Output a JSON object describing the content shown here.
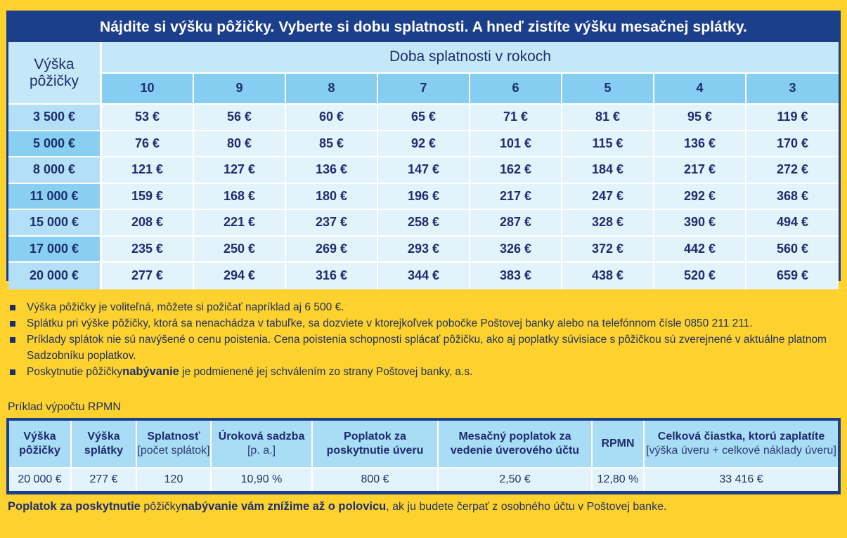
{
  "main_title": "Nájdite si výšku pôžičky. Vyberte si dobu splatnosti. A hneď zistíte výšku mesačnej splátky.",
  "loan_header_line1": "Výška",
  "loan_header_line2": "pôžičky",
  "term_header": "Doba splatnosti v rokoch",
  "terms": [
    "10",
    "9",
    "8",
    "7",
    "6",
    "5",
    "4",
    "3"
  ],
  "rows": [
    {
      "amount": "3 500 €",
      "values": [
        "53 €",
        "56 €",
        "60 €",
        "65 €",
        "71 €",
        "81 €",
        "95 €",
        "119 €"
      ]
    },
    {
      "amount": "5 000 €",
      "values": [
        "76 €",
        "80 €",
        "85 €",
        "92 €",
        "101 €",
        "115 €",
        "136 €",
        "170 €"
      ]
    },
    {
      "amount": "8 000 €",
      "values": [
        "121 €",
        "127 €",
        "136 €",
        "147 €",
        "162 €",
        "184 €",
        "217 €",
        "272 €"
      ]
    },
    {
      "amount": "11 000 €",
      "values": [
        "159 €",
        "168 €",
        "180 €",
        "196 €",
        "217 €",
        "247 €",
        "292 €",
        "368 €"
      ]
    },
    {
      "amount": "15 000 €",
      "values": [
        "208 €",
        "221 €",
        "237 €",
        "258 €",
        "287 €",
        "328 €",
        "390 €",
        "494 €"
      ]
    },
    {
      "amount": "17 000 €",
      "values": [
        "235 €",
        "250 €",
        "269 €",
        "293 €",
        "326 €",
        "372 €",
        "442 €",
        "560 €"
      ]
    },
    {
      "amount": "20 000 €",
      "values": [
        "277 €",
        "294 €",
        "316 €",
        "344 €",
        "383 €",
        "438 €",
        "520 €",
        "659 €"
      ]
    }
  ],
  "notes": {
    "n1": "Výška pôžičky je voliteľná, môžete si požičať napríklad aj 6 500 €.",
    "n2": "Splátku pri výške pôžičky, ktorá sa nenachádza v tabuľke, sa dozviete v ktorejkoľvek pobočke Poštovej banky alebo na telefónnom čísle 0850 211 211.",
    "n3": "Príklady splátok nie sú navýšené o cenu poistenia. Cena poistenia schopnosti splácať pôžičku, ako aj poplatky súvisiace s pôžičkou sú zverejnené v aktuálne platnom Sadzobníku poplatkov.",
    "n4_a": "Poskytnutie pôžičky",
    "n4_b": "nabývanie",
    "n4_c": " je podmienené jej schválením zo strany Poštovej banky, a.s."
  },
  "example_label": "Príklad výpočtu RPMN",
  "rpmn": {
    "headers": [
      {
        "main": "Výška pôžičky",
        "sub": ""
      },
      {
        "main": "Výška splátky",
        "sub": ""
      },
      {
        "main": "Splatnosť",
        "sub": "[počet splátok]"
      },
      {
        "main": "Úroková sadzba",
        "sub": "[p. a.]"
      },
      {
        "main": "Poplatok za poskytnutie úveru",
        "sub": ""
      },
      {
        "main": "Mesačný poplatok za vedenie úverového účtu",
        "sub": ""
      },
      {
        "main": "RPMN",
        "sub": ""
      },
      {
        "main": "Celková čiastka, ktorú zaplatíte",
        "sub": "[výška úveru + celkové náklady úveru]"
      }
    ],
    "values": [
      "20 000 €",
      "277 €",
      "120",
      "10,90 %",
      "800 €",
      "2,50 €",
      "12,80 %",
      "33 416 €"
    ]
  },
  "footer": {
    "a": "Poplatok za poskytnutie",
    "b": " pôžičky",
    "c": "nabývanie vám znížime až o polovicu",
    "d": ", ak ju budete čerpať z osobného účtu v Poštovej banke."
  }
}
